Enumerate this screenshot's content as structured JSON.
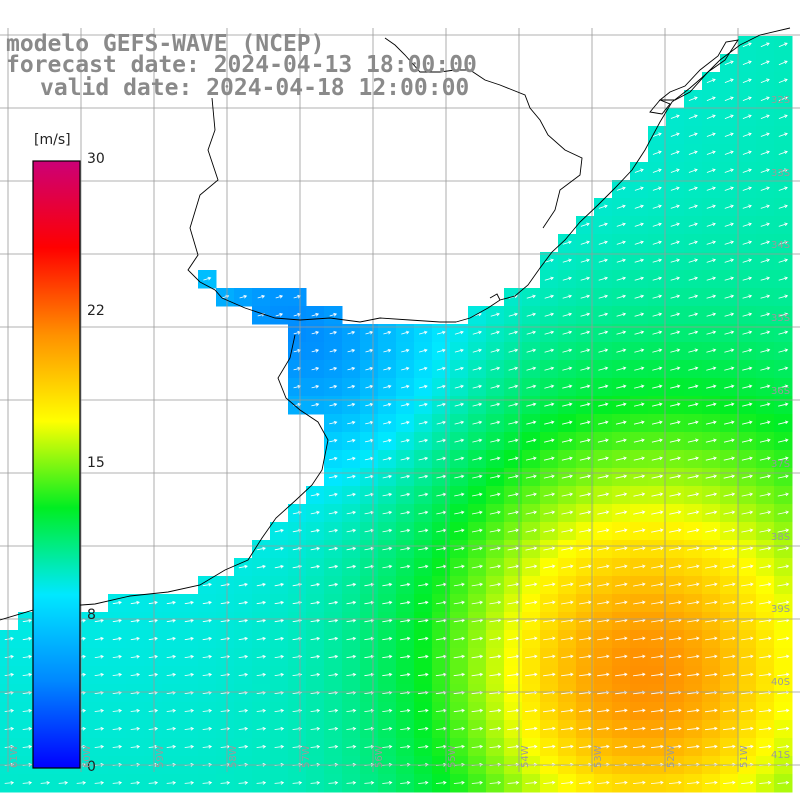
{
  "title": {
    "line1": "modelo GEFS-WAVE (NCEP)",
    "line2": "forecast date: 2024-04-13 18:00:00",
    "line3": "valid date: 2024-04-18 12:00:00"
  },
  "colorbar": {
    "unit": "[m/s]",
    "ticks": [
      "30",
      "22",
      "15",
      "8",
      "0"
    ],
    "tick_values": [
      30,
      22,
      15,
      8,
      0
    ],
    "min": 0,
    "max": 30,
    "stops": [
      "#0000ff",
      "#0088ff",
      "#00e8ff",
      "#00ee22",
      "#ffff00",
      "#ff9000",
      "#ff0000",
      "#cc0077"
    ]
  },
  "lat_labels": [
    "32S",
    "33S",
    "34S",
    "35S",
    "36S",
    "37S",
    "38S",
    "39S",
    "40S",
    "41S"
  ],
  "lon_labels": [
    "61W",
    "60W",
    "59W",
    "58W",
    "57W",
    "56W",
    "55W",
    "54W",
    "53W",
    "52W",
    "51W"
  ],
  "colors": {
    "land": "#ffffff",
    "coast": "#000000",
    "grid": "#999999",
    "arrow": "#ffffff"
  }
}
